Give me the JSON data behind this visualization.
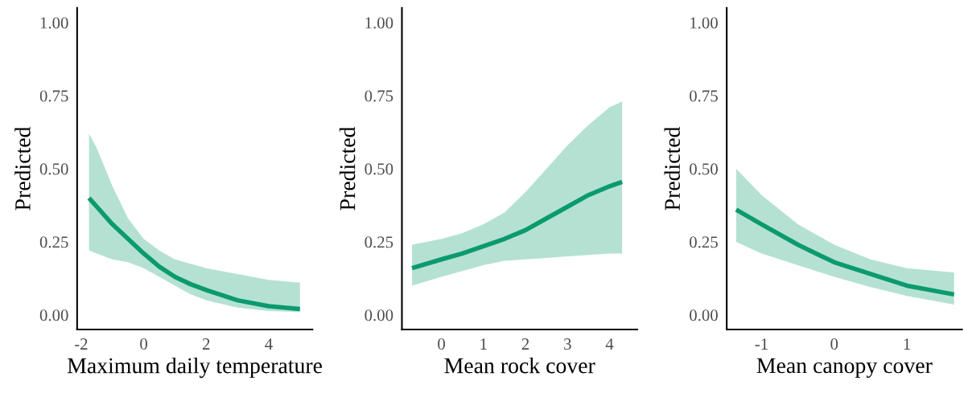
{
  "chart_data": [
    {
      "type": "line",
      "xlabel": "Maximum daily temperature",
      "ylabel": "Predicted",
      "xlim": [
        -2.13,
        5.4
      ],
      "xticks": [
        -2,
        0,
        2,
        4
      ],
      "ylim": [
        -0.05,
        1.05
      ],
      "yticks": [
        {
          "value": 0,
          "label": "0.00"
        },
        {
          "value": 0.25,
          "label": "0.25"
        },
        {
          "value": 0.5,
          "label": "0.50"
        },
        {
          "value": 0.75,
          "label": "0.75"
        },
        {
          "value": 1,
          "label": "1.00"
        }
      ],
      "series": [
        {
          "color": "#0b9a6e",
          "x": [
            -1.75,
            -1.5,
            -1,
            -0.5,
            0,
            0.5,
            1,
            1.5,
            2,
            3,
            4,
            5
          ],
          "values": [
            0.4,
            0.37,
            0.31,
            0.26,
            0.21,
            0.165,
            0.13,
            0.105,
            0.085,
            0.05,
            0.03,
            0.02
          ],
          "lower": [
            0.22,
            0.21,
            0.19,
            0.18,
            0.16,
            0.13,
            0.1,
            0.07,
            0.05,
            0.025,
            0.013,
            0.01
          ],
          "upper": [
            0.62,
            0.57,
            0.44,
            0.33,
            0.26,
            0.22,
            0.19,
            0.175,
            0.16,
            0.14,
            0.12,
            0.11
          ]
        }
      ]
    },
    {
      "type": "line",
      "xlabel": "Mean rock cover",
      "ylabel": "Predicted",
      "xlim": [
        -0.94,
        4.66
      ],
      "xticks": [
        0,
        1,
        2,
        3,
        4
      ],
      "ylim": [
        -0.05,
        1.05
      ],
      "yticks": [
        {
          "value": 0,
          "label": "0.00"
        },
        {
          "value": 0.25,
          "label": "0.25"
        },
        {
          "value": 0.5,
          "label": "0.50"
        },
        {
          "value": 0.75,
          "label": "0.75"
        },
        {
          "value": 1,
          "label": "1.00"
        }
      ],
      "series": [
        {
          "color": "#0b9a6e",
          "x": [
            -0.7,
            0,
            0.5,
            1,
            1.5,
            2,
            2.5,
            3,
            3.5,
            4,
            4.3
          ],
          "values": [
            0.16,
            0.19,
            0.21,
            0.235,
            0.26,
            0.29,
            0.33,
            0.37,
            0.41,
            0.44,
            0.455
          ],
          "lower": [
            0.1,
            0.13,
            0.15,
            0.17,
            0.185,
            0.19,
            0.195,
            0.2,
            0.205,
            0.21,
            0.21
          ],
          "upper": [
            0.24,
            0.26,
            0.28,
            0.31,
            0.35,
            0.42,
            0.5,
            0.58,
            0.65,
            0.71,
            0.73
          ]
        }
      ]
    },
    {
      "type": "line",
      "xlabel": "Mean canopy cover",
      "ylabel": "Predicted",
      "xlim": [
        -1.48,
        1.76
      ],
      "xticks": [
        -1,
        0,
        1
      ],
      "ylim": [
        -0.05,
        1.05
      ],
      "yticks": [
        {
          "value": 0,
          "label": "0.00"
        },
        {
          "value": 0.25,
          "label": "0.25"
        },
        {
          "value": 0.5,
          "label": "0.50"
        },
        {
          "value": 0.75,
          "label": "0.75"
        },
        {
          "value": 1,
          "label": "1.00"
        }
      ],
      "series": [
        {
          "color": "#0b9a6e",
          "x": [
            -1.35,
            -1,
            -0.5,
            0,
            0.5,
            1,
            1.65
          ],
          "values": [
            0.36,
            0.31,
            0.24,
            0.18,
            0.14,
            0.1,
            0.07
          ],
          "lower": [
            0.25,
            0.21,
            0.17,
            0.13,
            0.095,
            0.065,
            0.035
          ],
          "upper": [
            0.5,
            0.41,
            0.31,
            0.24,
            0.19,
            0.16,
            0.145
          ]
        }
      ]
    }
  ]
}
